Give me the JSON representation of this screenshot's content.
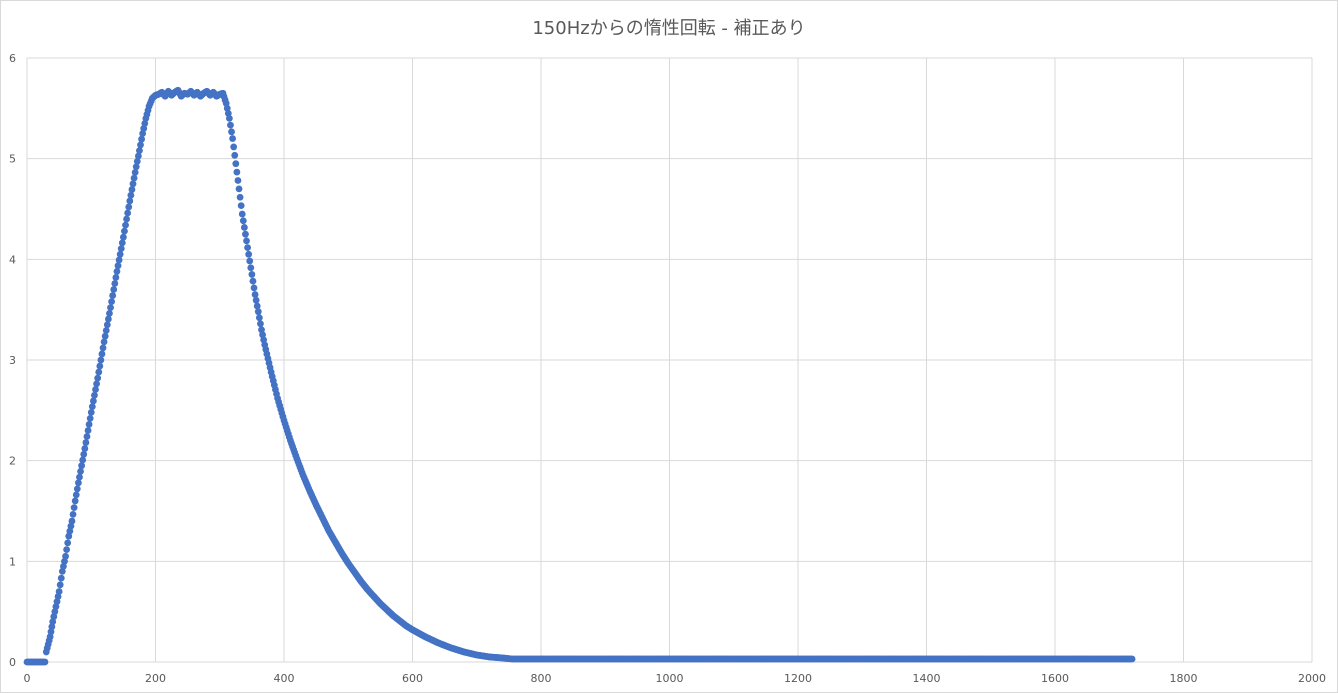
{
  "chart_data": {
    "type": "scatter",
    "title": "150Hzからの惰性回転 - 補正あり",
    "xlabel": "",
    "ylabel": "",
    "xlim": [
      0,
      2000
    ],
    "ylim": [
      0,
      6
    ],
    "xticks": [
      0,
      200,
      400,
      600,
      800,
      1000,
      1200,
      1400,
      1600,
      1800,
      2000
    ],
    "yticks": [
      0,
      1,
      2,
      3,
      4,
      5,
      6
    ],
    "grid": true,
    "legend": "none",
    "marker_color": "#4472c4",
    "series": [
      {
        "x": [
          0,
          20,
          28,
          30,
          36,
          40,
          45,
          50,
          55,
          60,
          65,
          70,
          75,
          80,
          85,
          90,
          95,
          100,
          105,
          110,
          115,
          120,
          125,
          130,
          135,
          140,
          145,
          150,
          155,
          160,
          165,
          170,
          175,
          180,
          185,
          190,
          195,
          200,
          205,
          210,
          215,
          220,
          225,
          230,
          235,
          240,
          245,
          250,
          255,
          260,
          265,
          270,
          275,
          280,
          285,
          290,
          295,
          300,
          305,
          310,
          315,
          320,
          325,
          330,
          335,
          340,
          345,
          350,
          355,
          360,
          365,
          370,
          380,
          390,
          400,
          410,
          420,
          430,
          440,
          450,
          460,
          470,
          480,
          490,
          500,
          510,
          520,
          530,
          540,
          550,
          560,
          570,
          580,
          590,
          600,
          620,
          640,
          660,
          680,
          700,
          720,
          740,
          755,
          800,
          900,
          1000,
          1100,
          1200,
          1300,
          1400,
          1500,
          1600,
          1700,
          1720
        ],
        "y": [
          0,
          0,
          0,
          0.1,
          0.25,
          0.4,
          0.55,
          0.7,
          0.9,
          1.05,
          1.25,
          1.4,
          1.6,
          1.78,
          1.95,
          2.12,
          2.3,
          2.48,
          2.65,
          2.82,
          3.0,
          3.18,
          3.35,
          3.52,
          3.7,
          3.88,
          4.05,
          4.22,
          4.4,
          4.58,
          4.75,
          4.92,
          5.08,
          5.25,
          5.4,
          5.52,
          5.6,
          5.63,
          5.64,
          5.66,
          5.62,
          5.67,
          5.63,
          5.66,
          5.68,
          5.62,
          5.65,
          5.64,
          5.67,
          5.63,
          5.66,
          5.62,
          5.65,
          5.67,
          5.63,
          5.66,
          5.62,
          5.64,
          5.65,
          5.55,
          5.4,
          5.2,
          4.95,
          4.7,
          4.45,
          4.25,
          4.05,
          3.85,
          3.65,
          3.48,
          3.3,
          3.15,
          2.88,
          2.62,
          2.4,
          2.2,
          2.02,
          1.85,
          1.7,
          1.56,
          1.43,
          1.3,
          1.19,
          1.08,
          0.98,
          0.89,
          0.8,
          0.72,
          0.65,
          0.58,
          0.52,
          0.46,
          0.41,
          0.36,
          0.32,
          0.25,
          0.19,
          0.14,
          0.1,
          0.07,
          0.05,
          0.04,
          0.03,
          0.03,
          0.03,
          0.03,
          0.03,
          0.03,
          0.03,
          0.03,
          0.03,
          0.03,
          0.03,
          0.03
        ]
      }
    ]
  }
}
